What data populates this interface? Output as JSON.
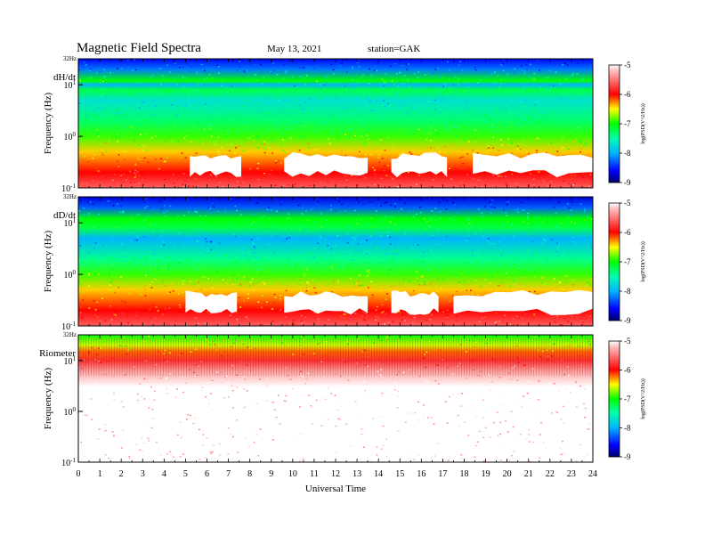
{
  "header": {
    "title": "Magnetic Field Spectra",
    "date": "May 13, 2021",
    "station": "station=GAK"
  },
  "colors": {
    "colormap": [
      "#00006e",
      "#0000ff",
      "#00b4ff",
      "#00ffb0",
      "#00ff00",
      "#ffff00",
      "#ff0000",
      "#ffffff"
    ]
  },
  "chart_data": [
    {
      "type": "heatmap",
      "panel_label": "dH/dt",
      "ylabel": "Frequency (Hz)",
      "top_label": "32Hz",
      "yscale": "log",
      "ylim": [
        0.1,
        32
      ],
      "y_ticks": [
        {
          "base": "10",
          "exp": "-1"
        },
        {
          "base": "10",
          "exp": "0"
        },
        {
          "base": "10",
          "exp": "1"
        }
      ],
      "xlim": [
        0,
        24
      ],
      "colorbar": {
        "label": "log(PSD(V^2/Hz))",
        "range": [
          -9,
          -5
        ],
        "ticks": [
          "-5",
          "-6",
          "-7",
          "-8",
          "-9"
        ]
      },
      "features": {
        "mean_log_psd_by_freq": [
          {
            "f": 32,
            "v": -8.6
          },
          {
            "f": 20,
            "v": -8.2
          },
          {
            "f": 12,
            "v": -7.0
          },
          {
            "f": 10,
            "v": -8.0
          },
          {
            "f": 8,
            "v": -7.2
          },
          {
            "f": 5,
            "v": -7.7
          },
          {
            "f": 2,
            "v": -7.3
          },
          {
            "f": 1,
            "v": -6.9
          },
          {
            "f": 0.5,
            "v": -6.4
          },
          {
            "f": 0.2,
            "v": -6.0
          },
          {
            "f": 0.1,
            "v": -5.6
          }
        ],
        "saturated_blobs_UT": [
          [
            5.2,
            7.6
          ],
          [
            9.6,
            13.5
          ],
          [
            14.6,
            17.2
          ],
          [
            18.4,
            24.0
          ]
        ]
      }
    },
    {
      "type": "heatmap",
      "panel_label": "dD/dt",
      "ylabel": "Frequency (Hz)",
      "top_label": "32Hz",
      "yscale": "log",
      "ylim": [
        0.1,
        32
      ],
      "y_ticks": [
        {
          "base": "10",
          "exp": "-1"
        },
        {
          "base": "10",
          "exp": "0"
        },
        {
          "base": "10",
          "exp": "1"
        }
      ],
      "xlim": [
        0,
        24
      ],
      "colorbar": {
        "label": "log(PSD(V^2/Hz))",
        "range": [
          -9,
          -5
        ],
        "ticks": [
          "-5",
          "-6",
          "-7",
          "-8",
          "-9"
        ]
      },
      "features": {
        "mean_log_psd_by_freq": [
          {
            "f": 32,
            "v": -8.7
          },
          {
            "f": 20,
            "v": -8.3
          },
          {
            "f": 12,
            "v": -7.0
          },
          {
            "f": 8,
            "v": -7.2
          },
          {
            "f": 5,
            "v": -8.0
          },
          {
            "f": 2,
            "v": -7.4
          },
          {
            "f": 1,
            "v": -6.9
          },
          {
            "f": 0.5,
            "v": -6.4
          },
          {
            "f": 0.2,
            "v": -6.0
          },
          {
            "f": 0.1,
            "v": -5.6
          }
        ],
        "saturated_blobs_UT": [
          [
            5.0,
            7.4
          ],
          [
            9.6,
            13.5
          ],
          [
            14.6,
            16.8
          ],
          [
            17.5,
            24.0
          ]
        ]
      }
    },
    {
      "type": "heatmap",
      "panel_label": "Riometer",
      "ylabel": "Frequency (Hz)",
      "top_label": "32Hz",
      "yscale": "log",
      "ylim": [
        0.1,
        32
      ],
      "y_ticks": [
        {
          "base": "10",
          "exp": "-1"
        },
        {
          "base": "10",
          "exp": "0"
        },
        {
          "base": "10",
          "exp": "1"
        }
      ],
      "xlim": [
        0,
        24
      ],
      "colorbar": {
        "label": "log(PSD(V^2/Hz))",
        "range": [
          -9,
          -5
        ],
        "ticks": [
          "-5",
          "-6",
          "-7",
          "-8",
          "-9"
        ]
      },
      "features": {
        "mean_log_psd_by_freq": [
          {
            "f": 32,
            "v": -7.0
          },
          {
            "f": 20,
            "v": -6.6
          },
          {
            "f": 15,
            "v": -6.2
          },
          {
            "f": 10,
            "v": -5.8
          },
          {
            "f": 6,
            "v": -5.3
          },
          {
            "f": 3,
            "v": -5.0
          },
          {
            "f": 0.1,
            "v": -5.0
          }
        ]
      }
    }
  ],
  "x_axis": {
    "label": "Universal Time",
    "ticks": [
      "0",
      "1",
      "2",
      "3",
      "4",
      "5",
      "6",
      "7",
      "8",
      "9",
      "10",
      "11",
      "12",
      "13",
      "14",
      "15",
      "16",
      "17",
      "18",
      "19",
      "20",
      "21",
      "22",
      "23",
      "24"
    ]
  }
}
